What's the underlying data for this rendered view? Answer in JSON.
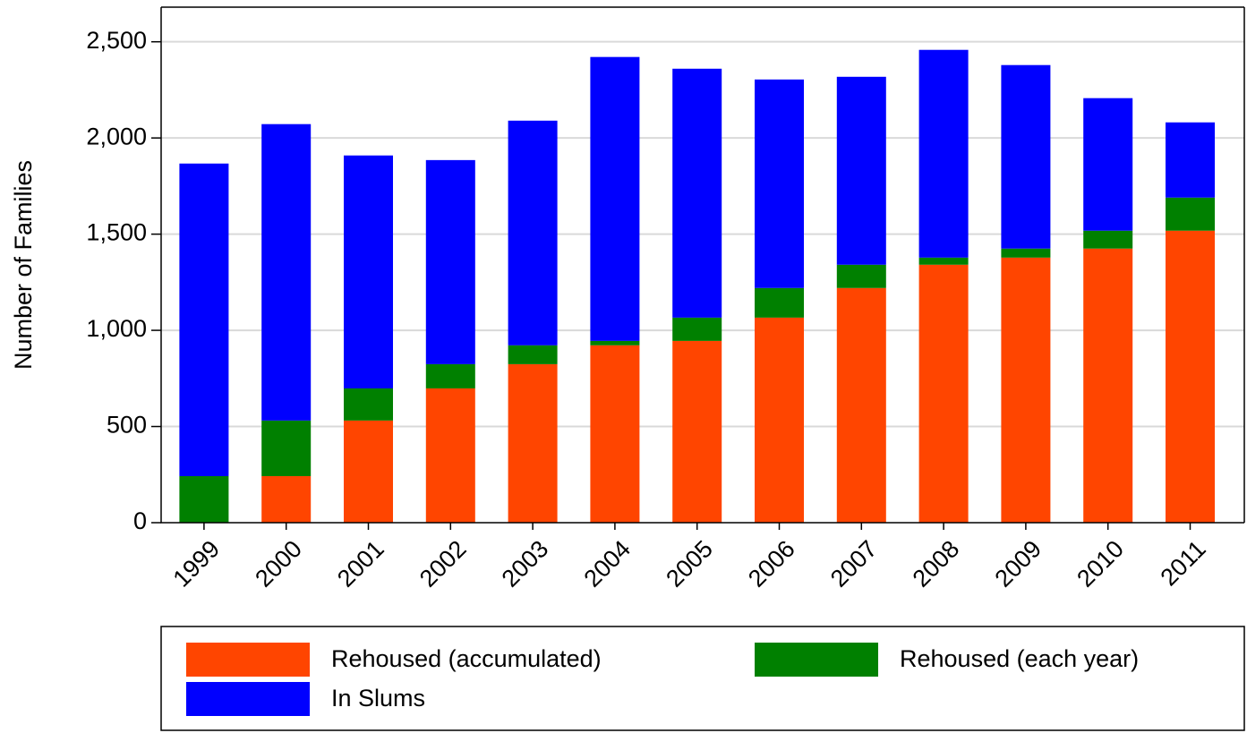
{
  "chart_data": {
    "type": "stacked_bar",
    "y_label": "Number of Families",
    "categories": [
      "1999",
      "2000",
      "2001",
      "2002",
      "2003",
      "2004",
      "2005",
      "2006",
      "2007",
      "2008",
      "2009",
      "2010",
      "2011"
    ],
    "series": [
      {
        "name": "Rehoused (accumulated)",
        "color": "#ff4500",
        "values": [
          0,
          242,
          531,
          698,
          824,
          922,
          945,
          1066,
          1220,
          1341,
          1378,
          1425,
          1518
        ]
      },
      {
        "name": "Rehoused (each year)",
        "color": "#008000",
        "values": [
          242,
          289,
          167,
          126,
          98,
          23,
          121,
          154,
          121,
          37,
          47,
          93,
          172
        ]
      },
      {
        "name": "In Slums",
        "color": "#0000ff",
        "values": [
          1625,
          1541,
          1211,
          1061,
          1168,
          1476,
          1294,
          1084,
          977,
          1080,
          954,
          689,
          391
        ]
      }
    ],
    "ylim": [
      0,
      2680
    ],
    "yticks": [
      0,
      500,
      {
        "value": 1000,
        "label": "1,000"
      },
      {
        "value": 1500,
        "label": "1,500"
      },
      {
        "value": 2000,
        "label": "2,000"
      },
      {
        "value": 2500,
        "label": "2,500"
      }
    ],
    "grid": true,
    "legend": "bottom"
  }
}
